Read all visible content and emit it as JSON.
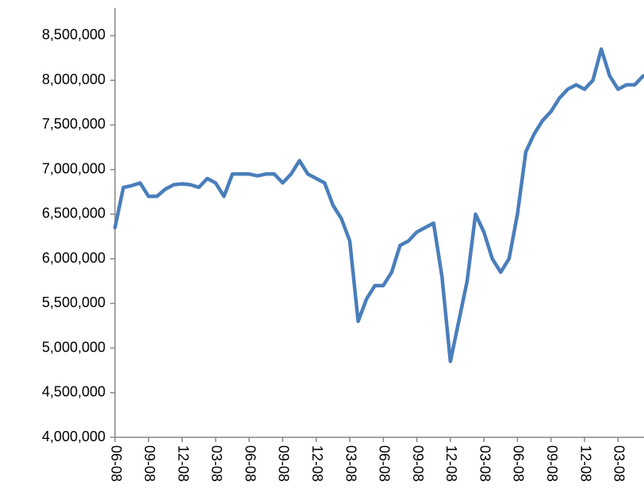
{
  "chart_data": {
    "type": "line",
    "color": "#4a7ebb",
    "categories": [
      "06-08",
      null,
      null,
      null,
      "09-08",
      null,
      null,
      null,
      "12-08",
      null,
      null,
      null,
      "03-08",
      null,
      null,
      null,
      "06-08",
      null,
      null,
      null,
      "09-08",
      null,
      null,
      null,
      "12-08",
      null,
      null,
      null,
      "03-08",
      null,
      null,
      null,
      "06-08",
      null,
      null,
      null,
      "09-08",
      null,
      null,
      null,
      "12-08",
      null,
      null,
      null,
      "03-08",
      null,
      null,
      null,
      "06-08",
      null,
      null,
      null,
      "09-08",
      null,
      null,
      null,
      "12-08",
      null,
      null,
      null,
      "03-08",
      null,
      null,
      null
    ],
    "values": [
      6350000,
      6800000,
      6820000,
      6850000,
      6700000,
      6700000,
      6780000,
      6830000,
      6840000,
      6830000,
      6800000,
      6900000,
      6850000,
      6700000,
      6950000,
      6950000,
      6950000,
      6930000,
      6950000,
      6950000,
      6850000,
      6950000,
      7100000,
      6950000,
      6900000,
      6850000,
      6600000,
      6450000,
      6200000,
      5300000,
      5550000,
      5700000,
      5700000,
      5850000,
      6150000,
      6200000,
      6300000,
      6350000,
      6400000,
      5800000,
      4850000,
      5300000,
      5750000,
      6500000,
      6300000,
      6000000,
      5850000,
      6000000,
      6500000,
      7200000,
      7400000,
      7550000,
      7650000,
      7800000,
      7900000,
      7950000,
      7900000,
      8000000,
      8350000,
      8050000,
      7900000,
      7950000,
      7950000,
      8050000
    ],
    "ylim": [
      4000000,
      8900000
    ],
    "yticks": [
      {
        "value": 4000000,
        "label": "4,000,000"
      },
      {
        "value": 4500000,
        "label": "4,500,000"
      },
      {
        "value": 5000000,
        "label": "5,000,000"
      },
      {
        "value": 5500000,
        "label": "5,500,000"
      },
      {
        "value": 6000000,
        "label": "6,000,000"
      },
      {
        "value": 6500000,
        "label": "6,500,000"
      },
      {
        "value": 7000000,
        "label": "7,000,000"
      },
      {
        "value": 7500000,
        "label": "7,500,000"
      },
      {
        "value": 8000000,
        "label": "8,000,000"
      },
      {
        "value": 8500000,
        "label": "8,500,000"
      }
    ]
  }
}
